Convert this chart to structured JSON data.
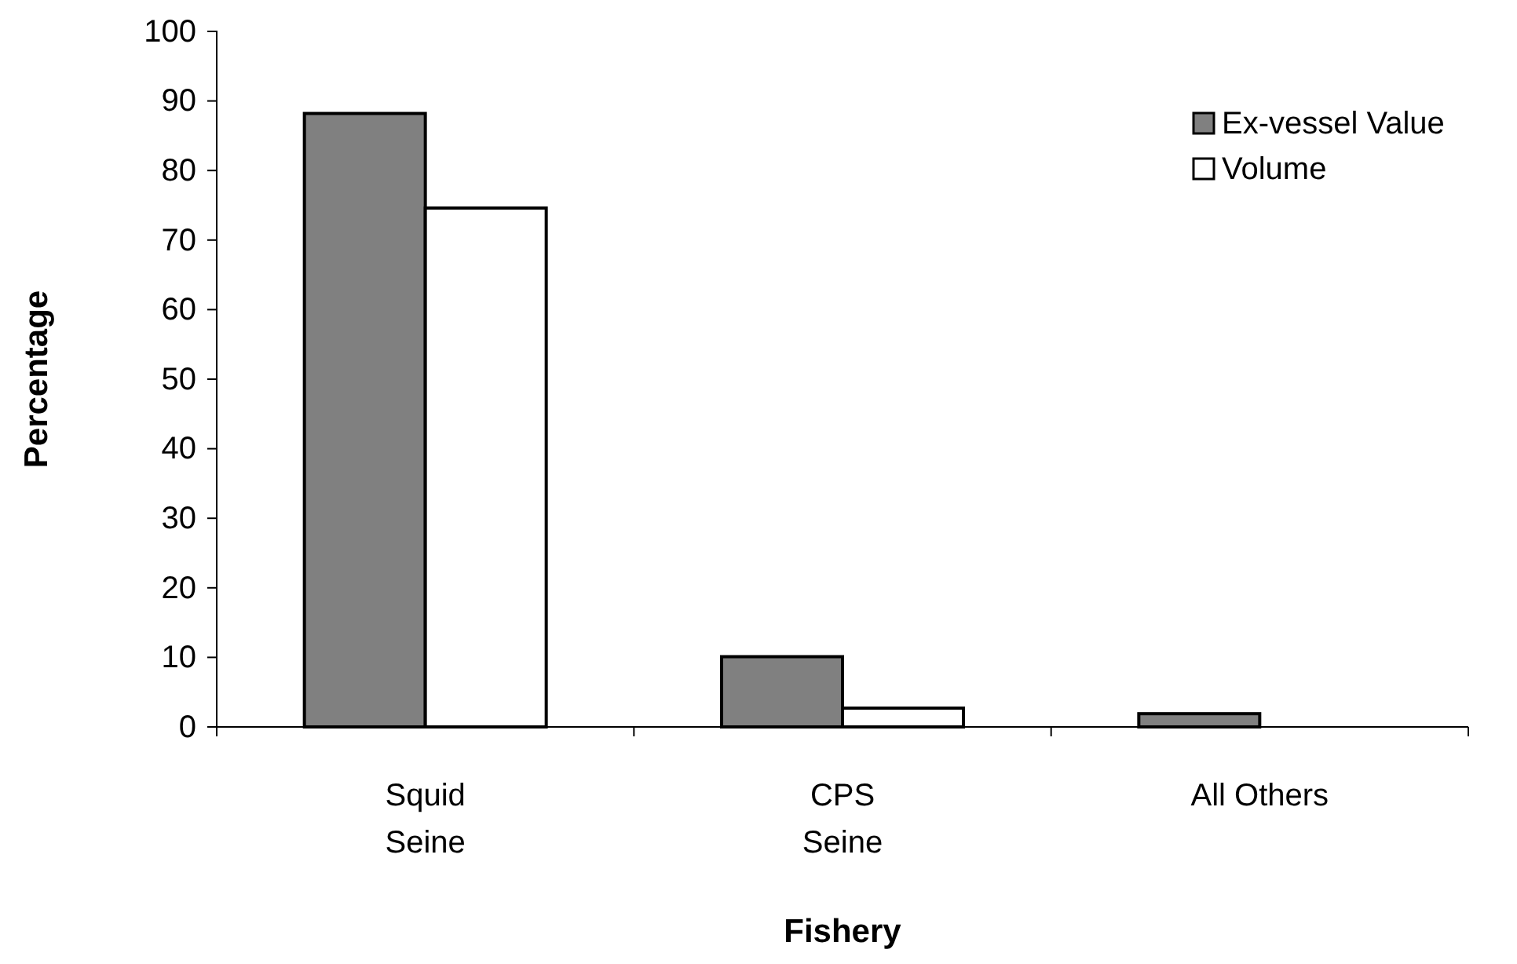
{
  "chart_data": {
    "type": "bar",
    "xlabel": "Fishery",
    "ylabel": "Percentage",
    "categories": [
      "Squid\nSeine",
      "CPS\nSeine",
      "All Others"
    ],
    "series": [
      {
        "name": "Ex-vessel Value",
        "color": "#808080",
        "values": [
          88.2,
          10.1,
          1.9
        ]
      },
      {
        "name": "Volume",
        "color": "#ffffff",
        "values": [
          74.6,
          2.7,
          0
        ]
      }
    ],
    "ylim": [
      0,
      100
    ],
    "yticks": [
      0,
      10,
      20,
      30,
      40,
      50,
      60,
      70,
      80,
      90,
      100
    ],
    "grid": false,
    "legend": "top right"
  }
}
